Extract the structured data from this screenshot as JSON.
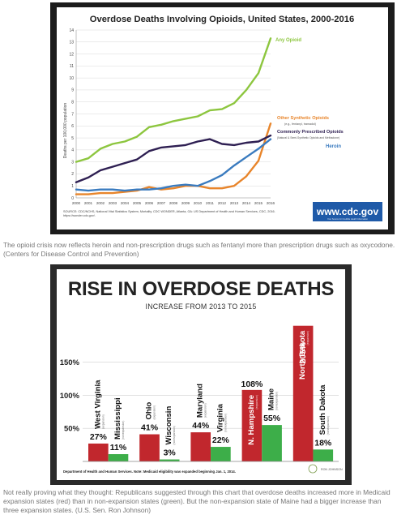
{
  "captions": {
    "first": "The opioid crisis now reflects heroin and non-prescription drugs such as fentanyl more than prescription drugs such as oxycodone. (Centers for Disease Control and Prevention)",
    "second": "Not really proving what they thought: Republicans suggested through this chart that overdose deaths increased more in Medicaid expansion states (red) than in non-expansion states (green). But the non-expansion state of Maine had a bigger increase than three expansion states. (U.S. Sen. Ron Johnson)"
  },
  "chart_data": [
    {
      "type": "line",
      "title": "Overdose Deaths Involving Opioids, United States, 2000-2016",
      "ylabel": "Deaths per 100,000 population",
      "xlabel": "",
      "ylim": [
        0,
        14
      ],
      "yticks": [
        "0",
        "1",
        "2",
        "3",
        "4",
        "5",
        "6",
        "7",
        "8",
        "9",
        "10",
        "11",
        "12",
        "13",
        "14"
      ],
      "x": [
        "2000",
        "2001",
        "2002",
        "2003",
        "2004",
        "2005",
        "2006",
        "2007",
        "2008",
        "2009",
        "2010",
        "2011",
        "2012",
        "2013",
        "2014",
        "2015",
        "2016"
      ],
      "series": [
        {
          "name": "Any Opioid",
          "color": "#8dc63f",
          "values": [
            3.0,
            3.3,
            4.1,
            4.5,
            4.7,
            5.1,
            5.9,
            6.1,
            6.4,
            6.6,
            6.8,
            7.3,
            7.4,
            7.9,
            9.0,
            10.4,
            13.3
          ]
        },
        {
          "name": "Other Synthetic Opioids",
          "note": "(e.g., fentanyl, tramadol)",
          "color": "#e8852b",
          "values": [
            0.3,
            0.3,
            0.4,
            0.4,
            0.5,
            0.6,
            0.9,
            0.7,
            0.8,
            1.0,
            1.0,
            0.8,
            0.8,
            1.0,
            1.8,
            3.1,
            6.2
          ]
        },
        {
          "name": "Commonly Prescribed Opioids",
          "note": "(Natural & Semi-Synthetic Opioids and Methadone)",
          "color": "#2e1f52",
          "values": [
            1.3,
            1.7,
            2.3,
            2.6,
            2.9,
            3.2,
            3.9,
            4.2,
            4.3,
            4.4,
            4.7,
            4.9,
            4.5,
            4.4,
            4.6,
            4.7,
            5.2
          ]
        },
        {
          "name": "Heroin",
          "color": "#3a7bbf",
          "values": [
            0.7,
            0.6,
            0.7,
            0.7,
            0.6,
            0.7,
            0.7,
            0.8,
            1.0,
            1.1,
            1.0,
            1.4,
            1.9,
            2.7,
            3.4,
            4.1,
            4.9
          ]
        }
      ],
      "source": "SOURCE: CDC/NCHS, National Vital Statistics System, Mortality. CDC WONDER, Atlanta, GA: US Department of Health and Human Services, CDC, 2016. https://wonder.cdc.gov/.",
      "logo": "www.cdc.gov",
      "logo_sub": "Your Source for Credible Health Information",
      "grid": true
    },
    {
      "type": "bar",
      "title": "RISE IN OVERDOSE DEATHS",
      "subtitle": "INCREASE FROM 2013 TO 2015",
      "ylim": [
        0,
        150
      ],
      "yticks": [
        "150%",
        "100%",
        "50%"
      ],
      "categories": [
        "West Virginia",
        "Mississippi",
        "Ohio",
        "Wisconsin",
        "Maryland",
        "Virginia",
        "N. Hampshire",
        "Maine",
        "North Dakota",
        "South Dakota"
      ],
      "tags": [
        "(expansion)",
        "(nonexpansion)",
        "(expansion)",
        "(nonexpansion)",
        "(expansion)",
        "(nonexpansion)",
        "(expansion)",
        "(nonexpansion)",
        "(expansion)",
        "(nonexpansion)"
      ],
      "values": [
        27,
        11,
        41,
        3,
        44,
        22,
        108,
        55,
        205,
        18
      ],
      "value_labels": [
        "27%",
        "11%",
        "41%",
        "3%",
        "44%",
        "22%",
        "108%",
        "55%",
        "205%",
        "18%"
      ],
      "expansion": [
        true,
        false,
        true,
        false,
        true,
        false,
        true,
        false,
        true,
        false
      ],
      "colors": {
        "expansion": "#c1272d",
        "nonexpansion": "#3dae49"
      },
      "footnote": "Department of Health and Human Services. Note: Medicaid eligibility was expanded beginning Jan. 1, 2014.",
      "logo": "RON JOHNSON"
    }
  ]
}
